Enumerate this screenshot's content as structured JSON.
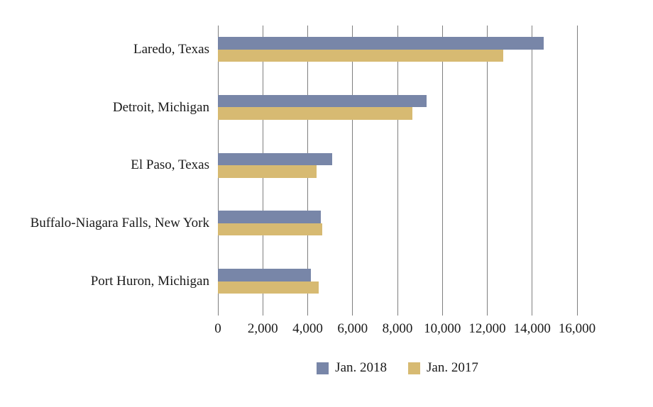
{
  "page": {
    "background": "#ffffff",
    "text_color": "#1a1a1a"
  },
  "chart_data": {
    "type": "bar",
    "orientation": "horizontal",
    "title": "",
    "categories": [
      "Laredo, Texas",
      "Detroit, Michigan",
      "El Paso, Texas",
      "Buffalo-Niagara Falls, New York",
      "Port Huron, Michigan"
    ],
    "series": [
      {
        "name": "Jan. 2018",
        "color": "#7886a8",
        "values": [
          14500,
          9300,
          5100,
          4600,
          4150
        ]
      },
      {
        "name": "Jan. 2017",
        "color": "#d7ba72",
        "values": [
          12700,
          8650,
          4400,
          4650,
          4480
        ]
      }
    ],
    "xlim": [
      0,
      16000
    ],
    "xticks": [
      0,
      2000,
      4000,
      6000,
      8000,
      10000,
      12000,
      14000,
      16000
    ],
    "xtick_labels": [
      "0",
      "2,000",
      "4,000",
      "6,000",
      "8,000",
      "10,000",
      "12,000",
      "14,000",
      "16,000"
    ],
    "xlabel": "",
    "ylabel": "",
    "grid": "vertical",
    "gridline_color": "#7f7f7f",
    "legend_position": "bottom-center"
  },
  "legend": {
    "items": [
      {
        "label": "Jan. 2018",
        "color": "#7886a8"
      },
      {
        "label": "Jan. 2017",
        "color": "#d7ba72"
      }
    ]
  }
}
